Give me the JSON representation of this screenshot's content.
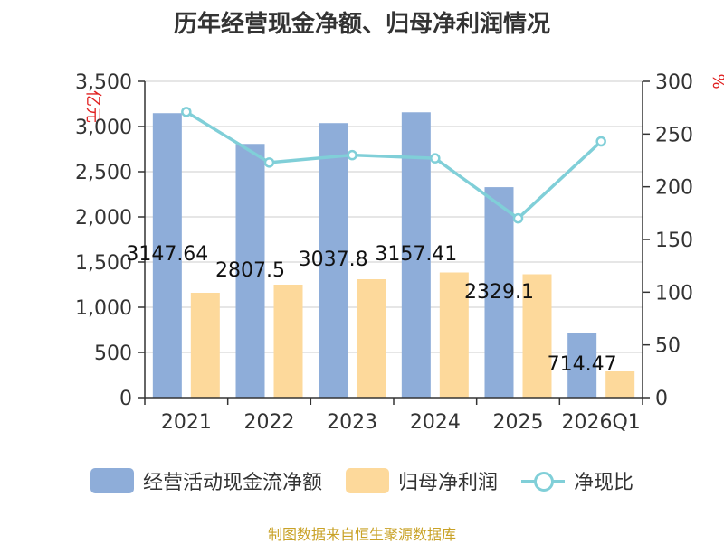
{
  "title": "历年经营现金净额、归母净利润情况",
  "source": "制图数据来自恒生聚源数据库",
  "chart_data": {
    "type": "bar",
    "categories": [
      "2021",
      "2022",
      "2023",
      "2024",
      "2025",
      "2026Q1"
    ],
    "y_left": {
      "label": "亿元",
      "min": 0,
      "max": 3500,
      "ticks": [
        "0",
        "500",
        "1,000",
        "1,500",
        "2,000",
        "2,500",
        "3,000",
        "3,500"
      ]
    },
    "y_right": {
      "label": "%",
      "min": 0,
      "max": 300,
      "ticks": [
        "0",
        "50",
        "100",
        "150",
        "200",
        "250",
        "300"
      ]
    },
    "series": [
      {
        "name": "经营活动现金流净额",
        "type": "bar",
        "axis": "left",
        "color": "#8eadd9",
        "values": [
          3147.64,
          2807.5,
          3037.8,
          3157.41,
          2329.1,
          714.47
        ],
        "labels": [
          "3147.64",
          "2807.5",
          "3037.8",
          "3157.41",
          "2329.1",
          "714.47"
        ]
      },
      {
        "name": "归母净利润",
        "type": "bar",
        "axis": "left",
        "color": "#fdd99b",
        "values": [
          1160,
          1250,
          1310,
          1385,
          1365,
          290
        ]
      },
      {
        "name": "净现比",
        "type": "line",
        "axis": "right",
        "color": "#80cfd8",
        "values": [
          271,
          223,
          230,
          227,
          170,
          243
        ]
      }
    ],
    "grid": true,
    "legend_position": "bottom"
  }
}
